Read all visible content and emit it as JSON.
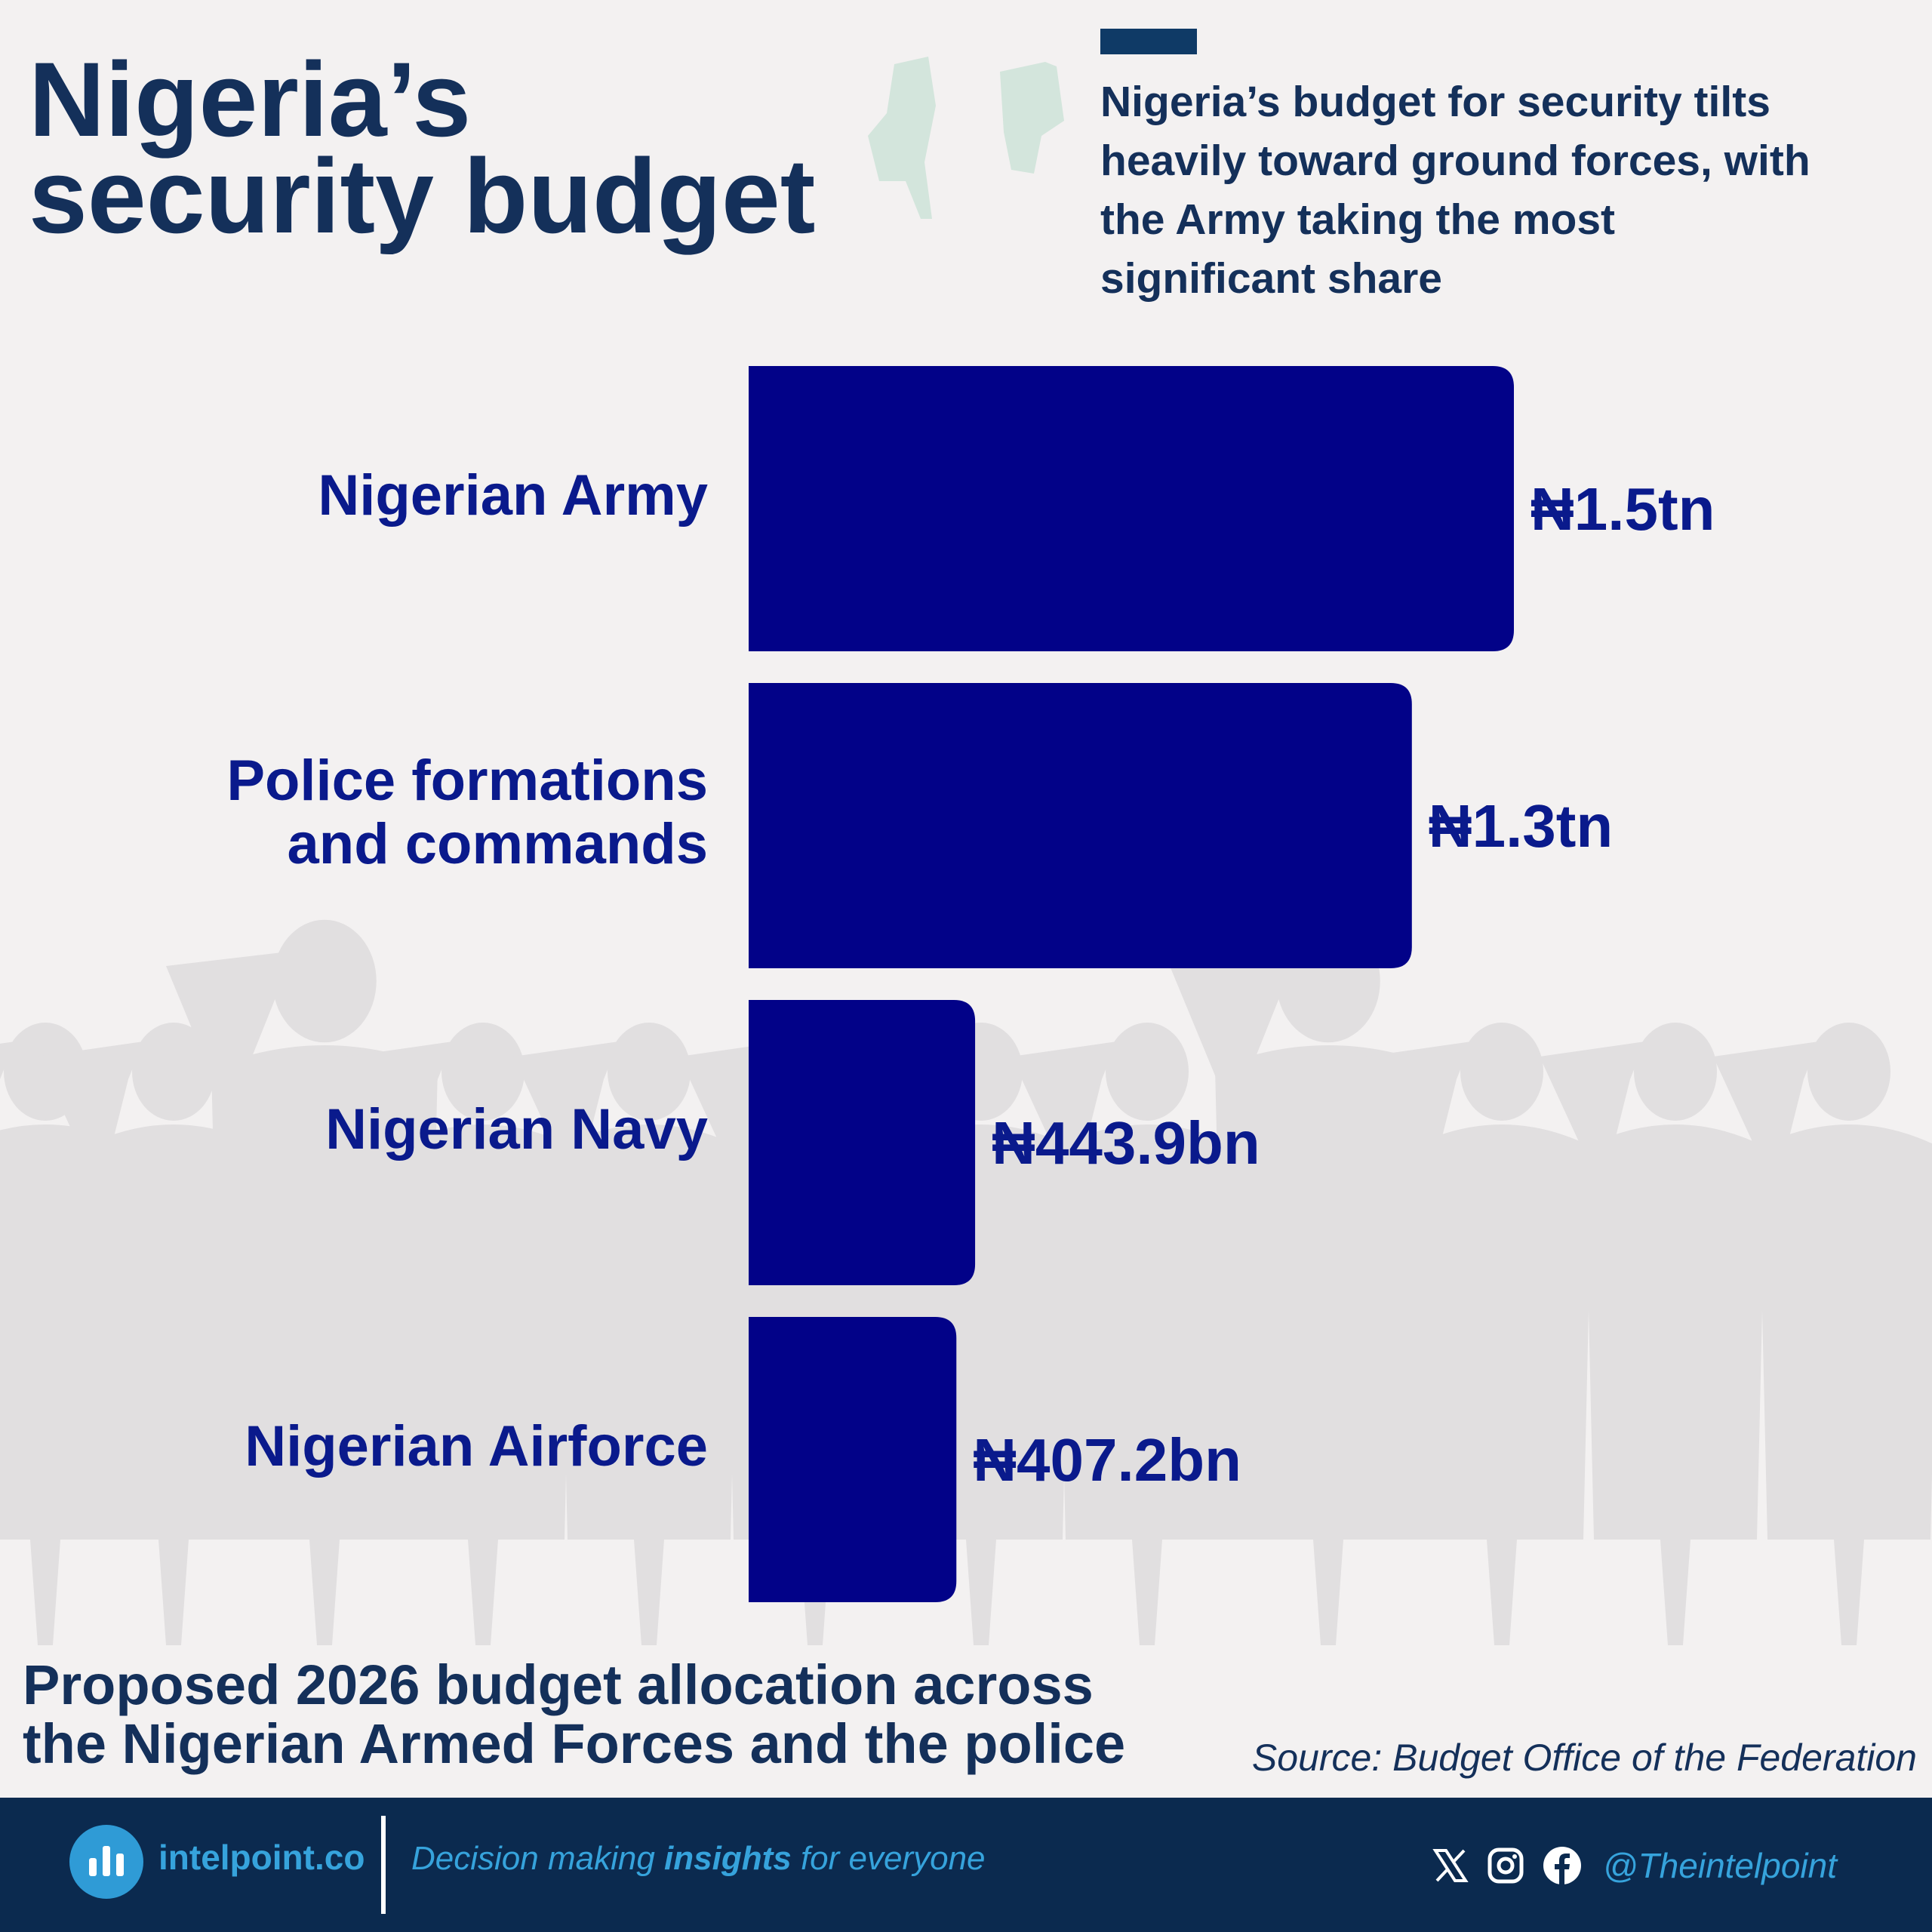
{
  "title": {
    "line1": "Nigeria’s",
    "line2": "security budget"
  },
  "subtitle": {
    "lines": [
      "Nigeria’s budget for security tilts",
      "heavily toward ground forces, with",
      "the Army taking the most",
      "significant share"
    ]
  },
  "chart_data": {
    "type": "bar",
    "orientation": "horizontal",
    "unit": "naira (trillions)",
    "categories": [
      [
        "Nigerian Army"
      ],
      [
        "Police formations",
        "and commands"
      ],
      [
        "Nigerian Navy"
      ],
      [
        "Nigerian Airforce"
      ]
    ],
    "values": [
      1.5,
      1.3,
      0.4439,
      0.4072
    ],
    "value_labels": [
      "₦1.5tn",
      "₦1.3tn",
      "₦443.9bn",
      "₦407.2bn"
    ],
    "bar_color": "#020288"
  },
  "caption": {
    "lines": [
      "Proposed 2026 budget allocation across",
      "the Nigerian Armed Forces and the police"
    ]
  },
  "source": "Source: Budget Office of the Federation",
  "footer": {
    "brand": "intelpoint.co",
    "tagline_before": "Decision making ",
    "tagline_bold": "insights",
    "tagline_after": " for everyone",
    "social_icons": [
      "x-icon",
      "instagram-icon",
      "facebook-icon"
    ],
    "handle": "@Theintelpoint"
  },
  "colors": {
    "background": "#f3f1f1",
    "title": "#14305a",
    "label": "#0a1a8c",
    "footer": "#0b2a4f",
    "accent": "#36a3dc"
  }
}
